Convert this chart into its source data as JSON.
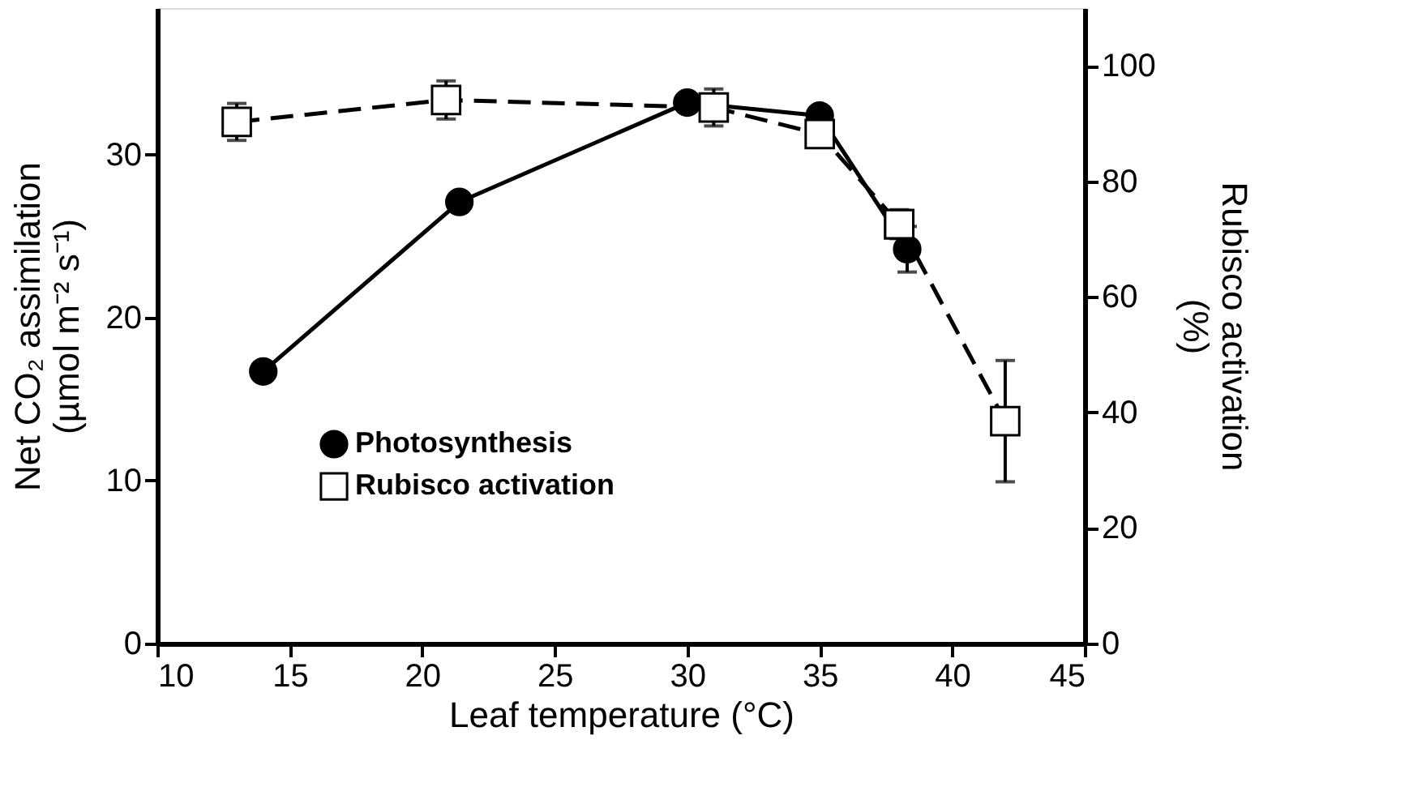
{
  "chart_data": {
    "type": "line",
    "xlabel": "Leaf temperature (°C)",
    "ylabel": "Net CO₂ assimilation\n(µmol m⁻² s⁻¹)",
    "y2label": "Rubisco activation\n(%)",
    "xlim": [
      10,
      45
    ],
    "xticks": [
      10,
      15,
      20,
      25,
      30,
      35,
      40,
      45
    ],
    "ylim": [
      0,
      39
    ],
    "yticks": [
      0,
      10,
      20,
      30
    ],
    "y2lim": [
      0,
      110
    ],
    "y2ticks": [
      0,
      20,
      40,
      60,
      80,
      100
    ],
    "grid": false,
    "legend": "bottom",
    "series": [
      {
        "name": "Photosynthesis",
        "color": "#000000",
        "marker": "circle",
        "line_style": "solid",
        "x": [
          14,
          21.4,
          30,
          35,
          38.3
        ],
        "values": [
          16.7,
          27.1,
          33.2,
          32.4,
          24.2
        ],
        "errors": [
          null,
          null,
          null,
          null,
          1.4
        ]
      },
      {
        "name": "Rubisco activation",
        "color": "#000000",
        "marker": "square",
        "line_style": "dashed",
        "axis": "y2",
        "x": [
          13,
          20.9,
          31,
          35,
          38
        ],
        "values": [
          90.3,
          94.1,
          92.8,
          88.2,
          72.6
        ],
        "errors": [
          3.2,
          3.3,
          3.2,
          null,
          2.5
        ]
      },
      {
        "name": null,
        "color": "#000000",
        "marker": "square",
        "line_style": "dashed",
        "axis": "y2",
        "x": [
          38,
          42
        ],
        "values": [
          72.6,
          38.5
        ],
        "errors": [
          null,
          [
            28,
            49
          ]
        ]
      }
    ]
  }
}
